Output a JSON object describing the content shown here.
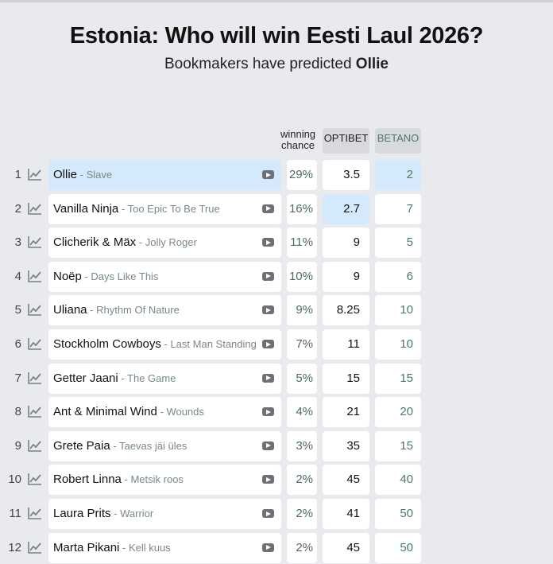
{
  "title": "Estonia: Who will win Eesti Laul 2026?",
  "subtitle": {
    "prefix": "Bookmakers have predicted ",
    "winner": "Ollie"
  },
  "headers": {
    "chance_line1": "winning",
    "chance_line2": "chance",
    "optibet": "OPTIBET",
    "betano": "BETANO"
  },
  "colors": {
    "highlight": "#d5e9fc",
    "background": "#e9eaee",
    "betano_text": "#4c7a63"
  },
  "icons": {
    "trend": "trend-chart-icon",
    "play": "video-play-icon"
  },
  "rows": [
    {
      "rank": "1",
      "artist": "Ollie",
      "song": "Slave",
      "chance": "29%",
      "optibet": "3.5",
      "betano": "2",
      "highlight_name": true,
      "best": "betano"
    },
    {
      "rank": "2",
      "artist": "Vanilla Ninja",
      "song": "Too Epic To Be True",
      "chance": "16%",
      "optibet": "2.7",
      "betano": "7",
      "best": "optibet"
    },
    {
      "rank": "3",
      "artist": "Clicherik & Mäx",
      "song": "Jolly Roger",
      "chance": "11%",
      "optibet": "9",
      "betano": "5"
    },
    {
      "rank": "4",
      "artist": "Noëp",
      "song": "Days Like This",
      "chance": "10%",
      "optibet": "9",
      "betano": "6"
    },
    {
      "rank": "5",
      "artist": "Uliana",
      "song": "Rhythm Of Nature",
      "chance": "9%",
      "optibet": "8.25",
      "betano": "10"
    },
    {
      "rank": "6",
      "artist": "Stockholm Cowboys",
      "song": "Last Man Standing",
      "chance": "7%",
      "optibet": "11",
      "betano": "10"
    },
    {
      "rank": "7",
      "artist": "Getter Jaani",
      "song": "The Game",
      "chance": "5%",
      "optibet": "15",
      "betano": "15"
    },
    {
      "rank": "8",
      "artist": "Ant & Minimal Wind",
      "song": "Wounds",
      "chance": "4%",
      "optibet": "21",
      "betano": "20"
    },
    {
      "rank": "9",
      "artist": "Grete Paia",
      "song": "Taevas jäi üles",
      "chance": "3%",
      "optibet": "35",
      "betano": "15"
    },
    {
      "rank": "10",
      "artist": "Robert Linna",
      "song": "Metsik roos",
      "chance": "2%",
      "optibet": "45",
      "betano": "40"
    },
    {
      "rank": "11",
      "artist": "Laura Prits",
      "song": "Warrior",
      "chance": "2%",
      "optibet": "41",
      "betano": "50"
    },
    {
      "rank": "12",
      "artist": "Marta Pikani",
      "song": "Kell kuus",
      "chance": "2%",
      "optibet": "45",
      "betano": "50"
    }
  ]
}
